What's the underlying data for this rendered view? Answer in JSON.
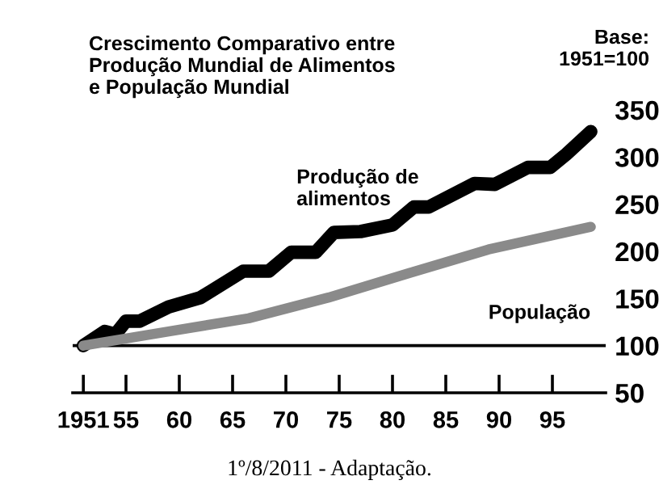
{
  "chart_data": {
    "type": "line",
    "title": "Crescimento Comparativo entre\nProdução Mundial de Alimentos\ne População Mundial",
    "ylabel": "Base:\n1951=100",
    "xlim": [
      1950,
      2000
    ],
    "xticks": [
      {
        "value": 1951,
        "label": "1951"
      },
      {
        "value": 1955,
        "label": "55"
      },
      {
        "value": 1960,
        "label": "60"
      },
      {
        "value": 1965,
        "label": "65"
      },
      {
        "value": 1970,
        "label": "70"
      },
      {
        "value": 1975,
        "label": "75"
      },
      {
        "value": 1980,
        "label": "80"
      },
      {
        "value": 1985,
        "label": "85"
      },
      {
        "value": 1990,
        "label": "90"
      },
      {
        "value": 1995,
        "label": "95"
      }
    ],
    "ylim": [
      50,
      350
    ],
    "yticks": [
      50,
      100,
      150,
      200,
      250,
      300,
      350
    ],
    "series": [
      {
        "name": "Produção de\nalimentos",
        "color": "#000000",
        "x": [
          1951,
          1953,
          1954,
          1955,
          1956.3,
          1959,
          1962,
          1966,
          1968.4,
          1970.5,
          1972.8,
          1974.5,
          1977,
          1980,
          1982,
          1983.4,
          1987.7,
          1989.6,
          1992.7,
          1994.8,
          1996.3,
          1998.6
        ],
        "values": [
          100,
          115,
          112,
          126,
          126,
          141,
          151,
          179,
          179,
          199,
          199,
          220,
          221,
          228,
          247,
          247,
          272,
          271,
          289,
          289,
          303,
          327
        ]
      },
      {
        "name": "População",
        "color": "#8a8a8a",
        "x": [
          1951,
          1959,
          1966.5,
          1974,
          1981.6,
          1989,
          1998.6
        ],
        "values": [
          100,
          115,
          129,
          151,
          177,
          202,
          226
        ]
      }
    ],
    "ref_lines": [
      {
        "axis": "y",
        "value": 100,
        "color": "#000000"
      }
    ],
    "grid": false,
    "legend": false,
    "marker": "none",
    "line_style": "solid",
    "annotations": [
      "1º/8/2011 - Adaptação."
    ]
  }
}
